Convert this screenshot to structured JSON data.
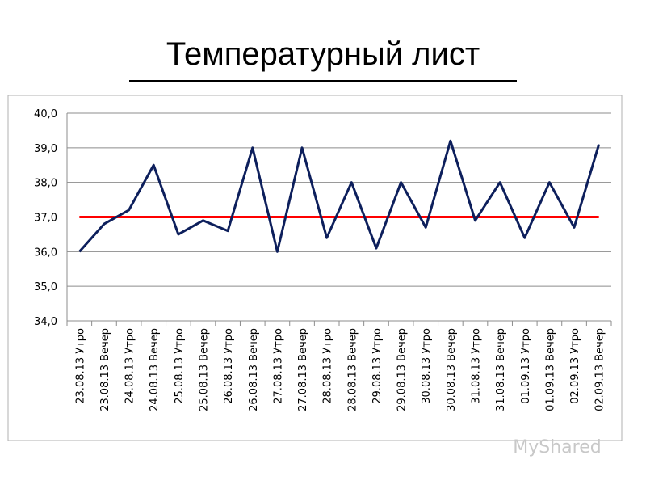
{
  "title": "Температурный лист",
  "watermark": "MyShared",
  "chart_data": {
    "type": "line",
    "categories": [
      "23.08.13 Утро",
      "23.08.13 Вечер",
      "24.08.13 Утро",
      "24.08.13 Вечер",
      "25.08.13 Утро",
      "25.08.13 Вечер",
      "26.08.13 Утро",
      "26.08.13 Вечер",
      "27.08.13 Утро",
      "27.08.13 Вечер",
      "28.08.13 Утро",
      "28.08.13 Вечер",
      "29.08.13 Утро",
      "29.08.13 Вечер",
      "30.08.13 Утро",
      "30.08.13 Вечер",
      "31.08.13 Утро",
      "31.08.13 Вечер",
      "01.09.13 Утро",
      "01.09.13 Вечер",
      "02.09.13 Утро",
      "02.09.13 Вечер"
    ],
    "series": [
      {
        "color": "#0d1f5c",
        "values": [
          36.0,
          36.8,
          37.2,
          38.5,
          36.5,
          36.9,
          36.6,
          39.0,
          36.0,
          39.0,
          36.4,
          38.0,
          36.1,
          38.0,
          36.7,
          39.2,
          36.9,
          38.0,
          36.4,
          38.0,
          36.7,
          39.1
        ]
      },
      {
        "color": "#ff0000",
        "values": [
          37.0,
          37.0,
          37.0,
          37.0,
          37.0,
          37.0,
          37.0,
          37.0,
          37.0,
          37.0,
          37.0,
          37.0,
          37.0,
          37.0,
          37.0,
          37.0,
          37.0,
          37.0,
          37.0,
          37.0,
          37.0,
          37.0
        ]
      }
    ],
    "ylim": [
      34,
      40
    ],
    "yticks": [
      {
        "value": 34,
        "label": "34,0"
      },
      {
        "value": 35,
        "label": "35,0"
      },
      {
        "value": 36,
        "label": "36,0"
      },
      {
        "value": 37,
        "label": "37,0"
      },
      {
        "value": 38,
        "label": "38,0"
      },
      {
        "value": 39,
        "label": "39,0"
      },
      {
        "value": 40,
        "label": "40,0"
      }
    ],
    "grid": true
  }
}
